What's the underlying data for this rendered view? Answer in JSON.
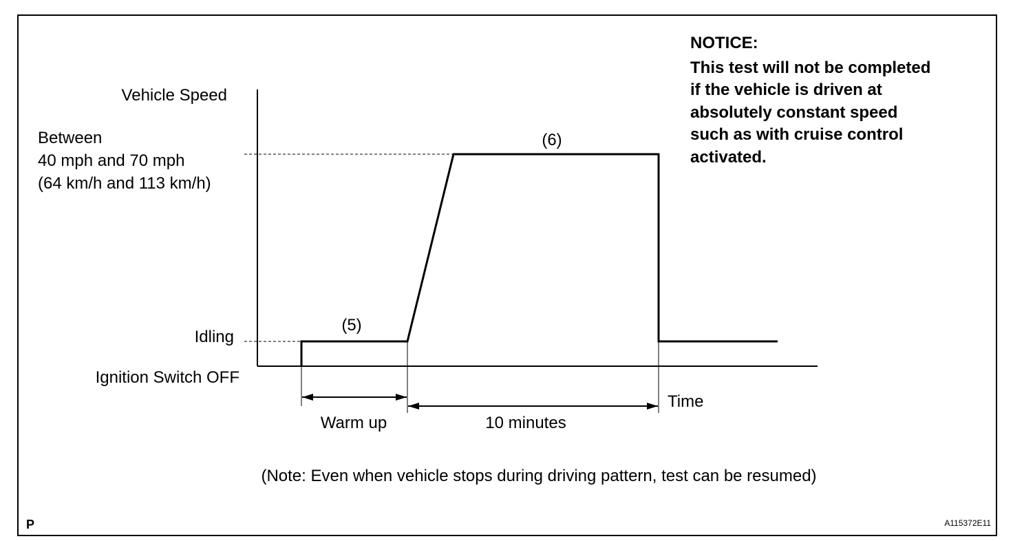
{
  "notice": {
    "title": "NOTICE:",
    "lines": [
      "This test will not be completed",
      "if the vehicle is driven at",
      "absolutely constant speed",
      "such as with cruise control",
      "activated."
    ]
  },
  "y_axis_label": "Vehicle Speed",
  "speed_range": [
    "Between",
    "40 mph and 70 mph",
    "(64 km/h and 113 km/h)"
  ],
  "levels": {
    "idling": "Idling",
    "off": "Ignition Switch OFF"
  },
  "steps": [
    "(5)",
    "(6)"
  ],
  "x_axis_label": "Time",
  "intervals": [
    "Warm up",
    "10 minutes"
  ],
  "note": "(Note: Even when vehicle stops during driving pattern, test can be resumed)",
  "corner_left": "P",
  "corner_right": "A115372E11"
}
